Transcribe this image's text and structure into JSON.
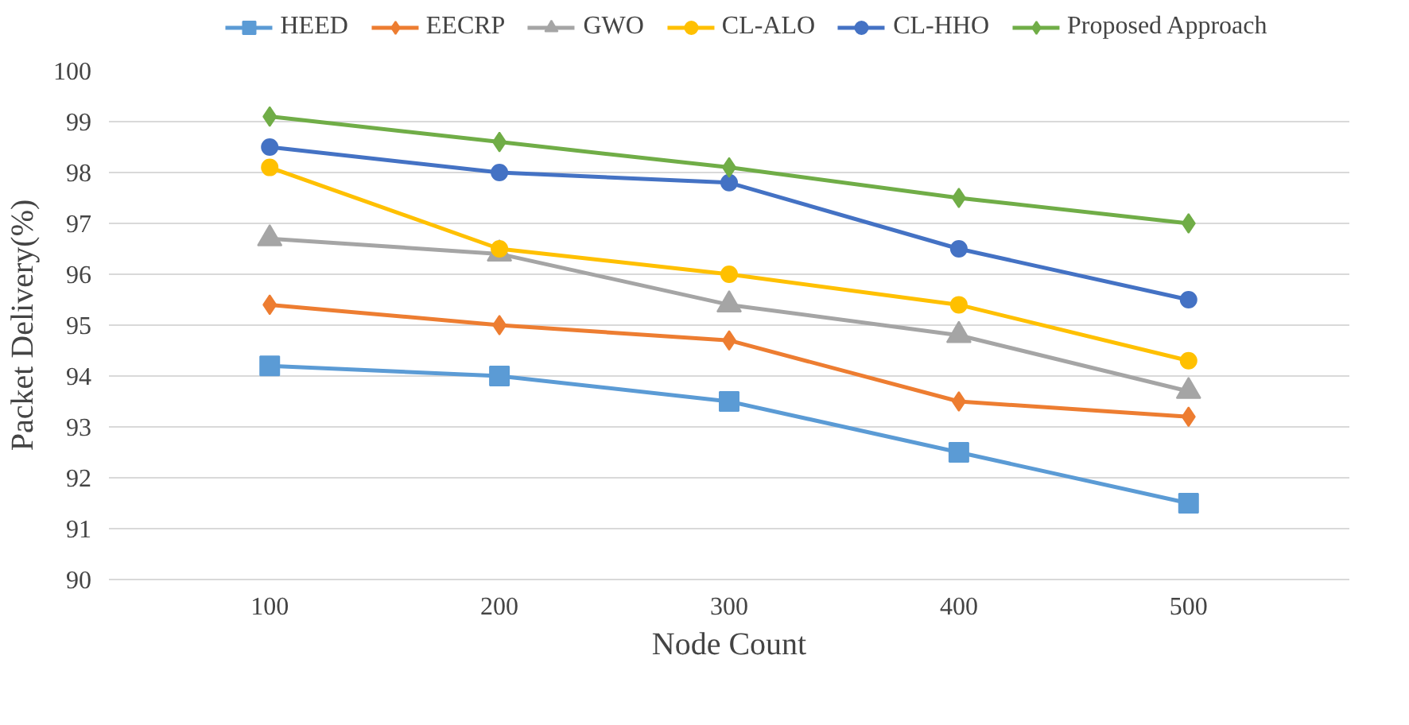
{
  "chart_data": {
    "type": "line",
    "xlabel": "Node Count",
    "ylabel": "Packet Delivery(%)",
    "categories": [
      "100",
      "200",
      "300",
      "400",
      "500"
    ],
    "ylim": [
      90,
      100
    ],
    "yticks": [
      90,
      91,
      92,
      93,
      94,
      95,
      96,
      97,
      98,
      99,
      100
    ],
    "grid": "y",
    "legend": "top",
    "line_style": "solid",
    "series": [
      {
        "name": "HEED",
        "color": "#5b9bd5",
        "marker": "square",
        "values": [
          94.2,
          94.0,
          93.5,
          92.5,
          91.5
        ]
      },
      {
        "name": "EECRP",
        "color": "#ed7d31",
        "marker": "diamond",
        "values": [
          95.4,
          95.0,
          94.7,
          93.5,
          93.2
        ]
      },
      {
        "name": "GWO",
        "color": "#a5a5a5",
        "marker": "triangle",
        "values": [
          96.7,
          96.4,
          95.4,
          94.8,
          93.7
        ]
      },
      {
        "name": "CL-ALO",
        "color": "#ffc000",
        "marker": "circle",
        "values": [
          98.1,
          96.5,
          96.0,
          95.4,
          94.3
        ]
      },
      {
        "name": "CL-HHO",
        "color": "#4472c4",
        "marker": "circle",
        "values": [
          98.5,
          98.0,
          97.8,
          96.5,
          95.5
        ]
      },
      {
        "name": "Proposed Approach",
        "color": "#70ad47",
        "marker": "diamond",
        "values": [
          99.1,
          98.6,
          98.1,
          97.5,
          97.0
        ]
      }
    ]
  }
}
